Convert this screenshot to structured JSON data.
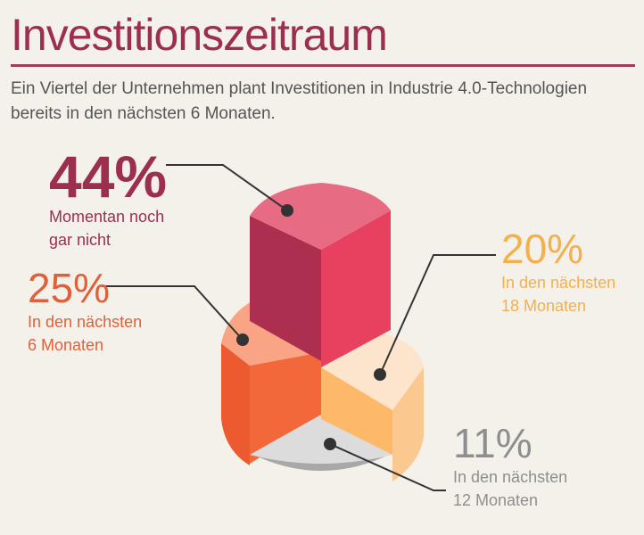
{
  "title": "Investitionszeitraum",
  "subtitle": "Ein Viertel der Unternehmen plant Investitionen in Industrie 4.0-Technologien bereits in den nächsten 6 Monaten.",
  "colors": {
    "title": "#9c2f50",
    "rule": "#a33a5a",
    "text_44": "#9c2f50",
    "text_25": "#e0603a",
    "text_20": "#f2b04e",
    "text_11": "#8e8e8e"
  },
  "chart_data": {
    "type": "pie",
    "style": "3d-stacked-pie",
    "slices": [
      {
        "label": "Momentan noch\ngar nicht",
        "percent_label": "44%",
        "value": 44,
        "color_top": "#e85a78",
        "color_side": "#ad2f4f"
      },
      {
        "label": "In den nächsten\n18 Monaten",
        "percent_label": "20%",
        "value": 20,
        "color_top": "#fde4cc",
        "color_side": "#fbc990"
      },
      {
        "label": "In den nächsten\n12 Monaten",
        "percent_label": "11%",
        "value": 11,
        "color_top": "#dcdcdc",
        "color_side": "#a8a8a8"
      },
      {
        "label": "In den nächsten\n6 Monaten",
        "percent_label": "25%",
        "value": 25,
        "color_top": "#f9a585",
        "color_side": "#ec5a2f"
      }
    ]
  }
}
